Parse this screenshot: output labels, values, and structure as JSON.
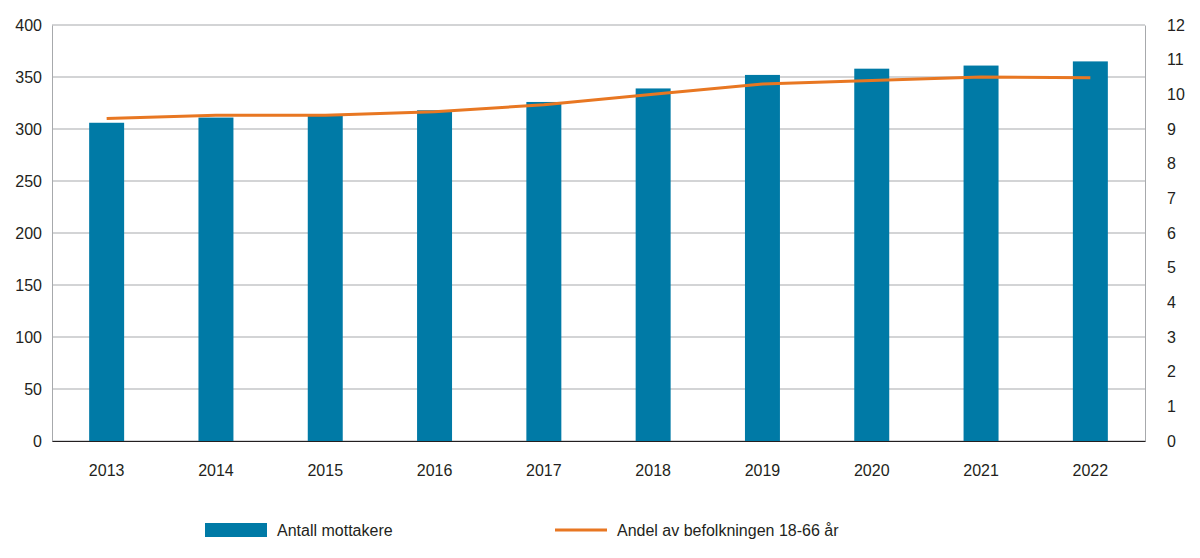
{
  "chart_data": {
    "type": "bar",
    "categories": [
      "2013",
      "2014",
      "2015",
      "2016",
      "2017",
      "2018",
      "2019",
      "2020",
      "2021",
      "2022"
    ],
    "series": [
      {
        "name": "Antall mottakere",
        "type": "bar",
        "color": "#007aa6",
        "values": [
          306,
          311,
          313,
          318,
          326,
          339,
          352,
          358,
          361,
          365
        ]
      },
      {
        "name": "Andel av befolkningen 18-66 år",
        "type": "line",
        "color": "#e87722",
        "axis": "y2",
        "values": [
          9.3,
          9.4,
          9.4,
          9.5,
          9.7,
          10.0,
          10.3,
          10.4,
          10.5,
          10.48
        ]
      }
    ],
    "ylim": [
      0,
      400
    ],
    "yticks": [
      0,
      50,
      100,
      150,
      200,
      250,
      300,
      350,
      400
    ],
    "y2lim": [
      0,
      12
    ],
    "y2ticks": [
      0,
      1,
      2,
      3,
      4,
      5,
      6,
      7,
      8,
      9,
      10,
      11,
      12
    ],
    "grid": true,
    "legend": "bottom"
  }
}
